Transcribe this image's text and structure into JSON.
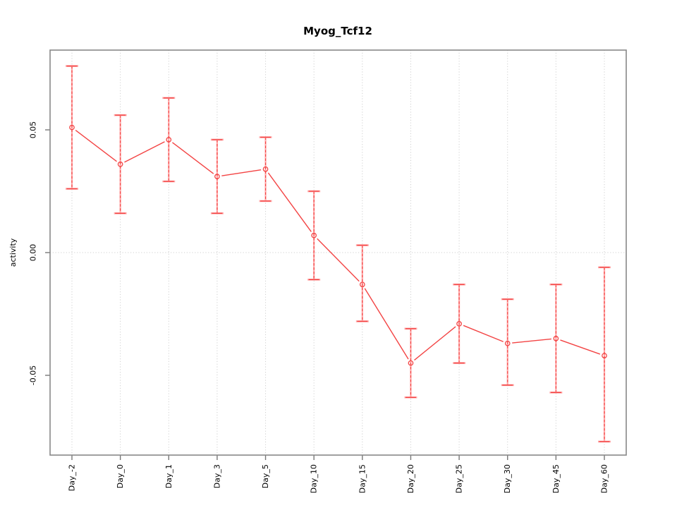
{
  "chart_data": {
    "type": "line",
    "title": "Myog_Tcf12",
    "xlabel": "",
    "ylabel": "activity",
    "categories": [
      "Day_-2",
      "Day_0",
      "Day_1",
      "Day_3",
      "Day_5",
      "Day_10",
      "Day_15",
      "Day_20",
      "Day_25",
      "Day_30",
      "Day_45",
      "Day_60"
    ],
    "series": [
      {
        "name": "activity",
        "values": [
          0.051,
          0.036,
          0.046,
          0.031,
          0.034,
          0.007,
          -0.013,
          -0.045,
          -0.029,
          -0.037,
          -0.035,
          -0.042
        ],
        "ci_low": [
          0.026,
          0.016,
          0.029,
          0.016,
          0.021,
          -0.011,
          -0.028,
          -0.059,
          -0.045,
          -0.054,
          -0.057,
          -0.077
        ],
        "ci_high": [
          0.076,
          0.056,
          0.063,
          0.046,
          0.047,
          0.025,
          0.003,
          -0.031,
          -0.013,
          -0.019,
          -0.013,
          -0.006
        ]
      }
    ],
    "yticks": [
      {
        "value": 0.05,
        "label": "0.05"
      },
      {
        "value": 0.0,
        "label": "0.00"
      },
      {
        "value": -0.05,
        "label": "-0.05"
      }
    ],
    "ylim": [
      -0.0825,
      0.0825
    ],
    "grid": "dotted vertical line at each category; dotted horizontal line at y=0",
    "legend_position": "none",
    "marker": "open-circle",
    "x_label_rotation": -90,
    "colors": {
      "line": "#f34444",
      "marker": "#f34444",
      "error_stem": "#ffaaaa",
      "error_stem_dash": "#f34444",
      "error_cap": "#f34444",
      "error_cap_under": "#ffaaaa",
      "grid": "#cfcfcf",
      "box": "#888888",
      "tick": "#777777",
      "text": "#000000",
      "background": "#ffffff"
    }
  }
}
